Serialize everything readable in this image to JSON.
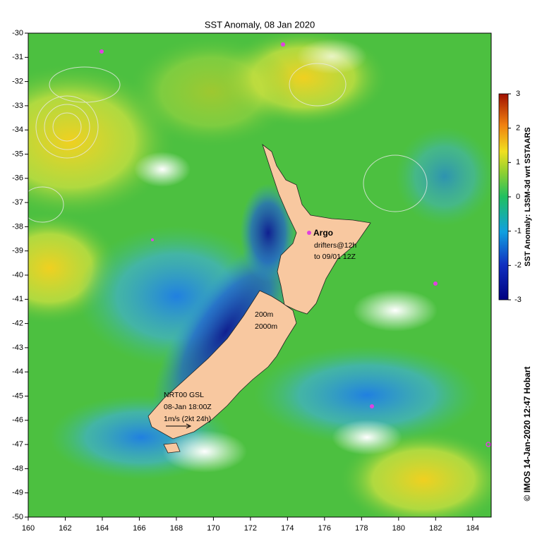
{
  "map": {
    "title": "SST Anomaly, 08 Jan 2020",
    "xlim": [
      160,
      185
    ],
    "xticks": [
      160,
      162,
      164,
      166,
      168,
      170,
      172,
      174,
      176,
      178,
      180,
      182,
      184
    ],
    "ylim": [
      -50,
      -30
    ],
    "yticks": [
      -30,
      -31,
      -32,
      -33,
      -34,
      -35,
      -36,
      -37,
      -38,
      -39,
      -40,
      -41,
      -42,
      -43,
      -44,
      -45,
      -46,
      -47,
      -48,
      -49,
      -50
    ],
    "colorbar": {
      "label": "SST Anomaly: L3SM-3d wrt SSTAARS",
      "lim": [
        -3,
        3
      ],
      "ticks": [
        -3,
        -2,
        -1,
        0,
        1,
        2,
        3
      ]
    },
    "annotations": [
      "Argo",
      "drifters@12h",
      "to 09/01 12Z",
      "200m",
      "2000m",
      "NRT00 GSL",
      "08-Jan 18:00Z",
      "1m/s (2kt 24h)"
    ],
    "credit": "© IMOS 14-Jan-2020 12:47 Hobart"
  }
}
